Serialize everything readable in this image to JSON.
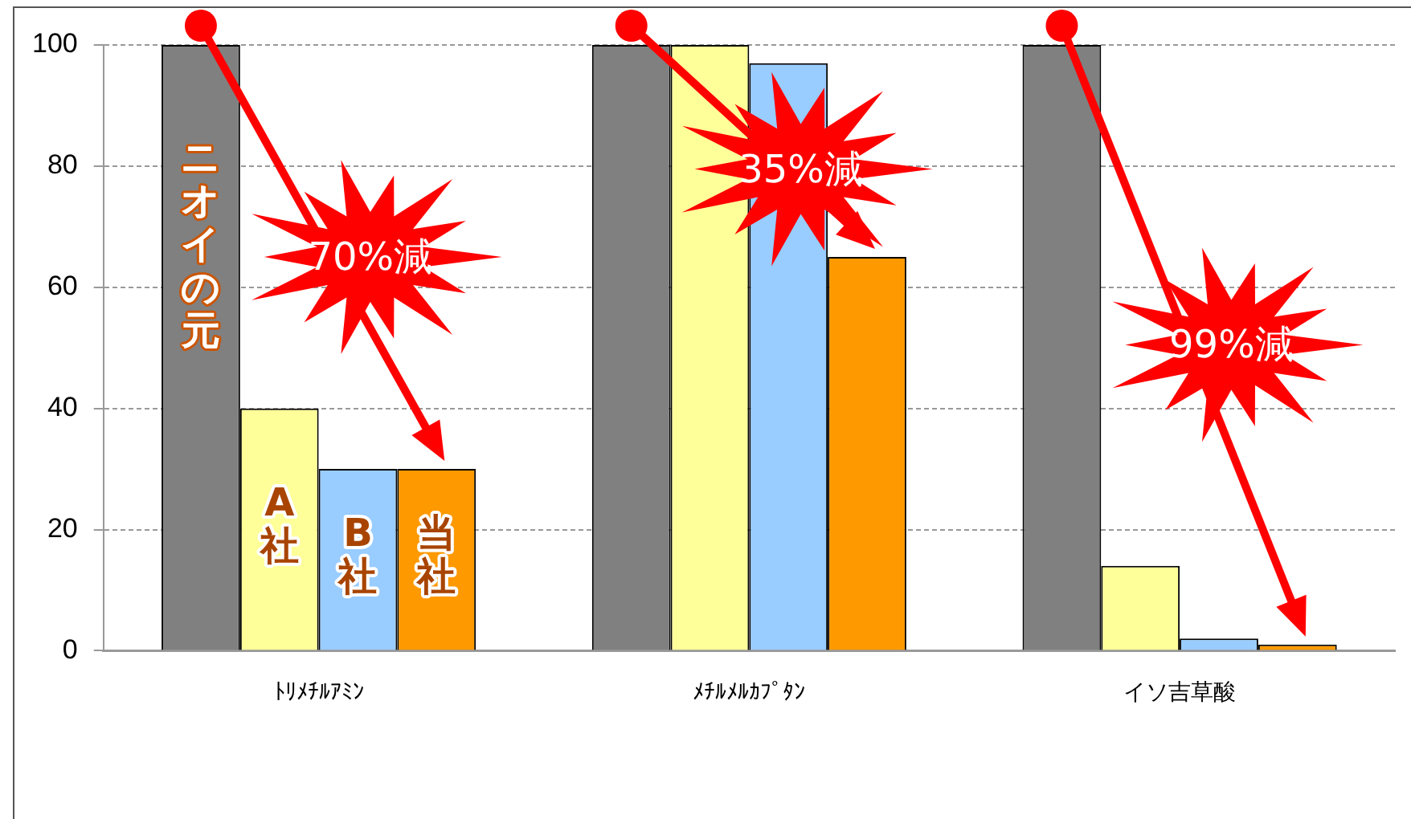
{
  "chart_data": {
    "type": "bar",
    "categories": [
      "ﾄﾘﾒﾁﾙｱﾐﾝ",
      "ﾒﾁﾙﾒﾙｶﾌﾟﾀﾝ",
      "イソ吉草酸"
    ],
    "series": [
      {
        "name": "ニオイの元",
        "color": "#808080",
        "values": [
          100,
          100,
          100
        ]
      },
      {
        "name": "A社",
        "color": "#ffff99",
        "values": [
          40,
          100,
          14
        ]
      },
      {
        "name": "B社",
        "color": "#99ccff",
        "values": [
          30,
          97,
          2
        ]
      },
      {
        "name": "当社",
        "color": "#ff9900",
        "values": [
          30,
          65,
          1
        ]
      }
    ],
    "ylim": [
      0,
      100
    ],
    "yticks": [
      0,
      20,
      40,
      60,
      80,
      100
    ],
    "grid": "y",
    "legend": false,
    "annotations": [
      "70%減",
      "35%減",
      "99%減"
    ]
  }
}
